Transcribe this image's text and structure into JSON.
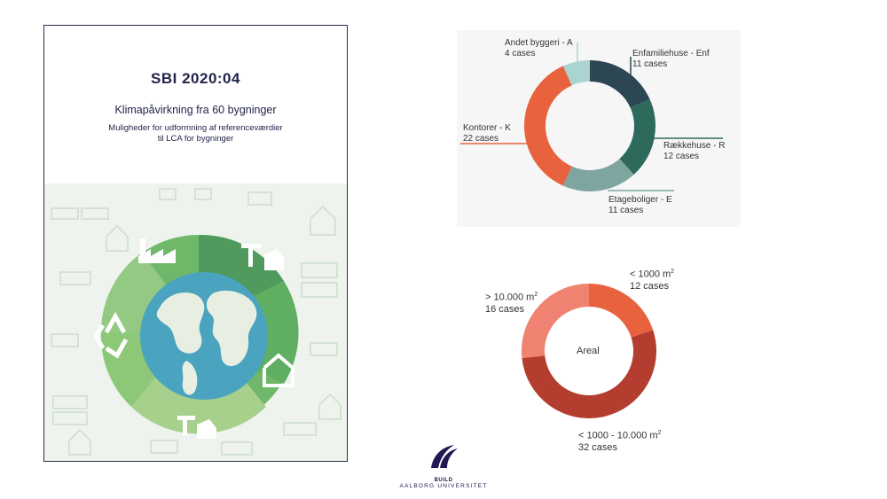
{
  "cover": {
    "title": "SBI 2020:04",
    "subtitle": "Klimapåvirkning fra 60 bygninger",
    "subtitle2_line1": "Muligheder for udformning af referenceværdier",
    "subtitle2_line2": "til LCA for bygninger"
  },
  "chart_data": [
    {
      "type": "pie",
      "title": "",
      "categories": [
        "Enfamiliehuse - Enf",
        "Rækkehuse - R",
        "Etageboliger - E",
        "Kontorer - K",
        "Andet byggeri - A"
      ],
      "values": [
        11,
        12,
        11,
        22,
        4
      ],
      "value_labels": [
        "11 cases",
        "12 cases",
        "11 cases",
        "22 cases",
        "4 cases"
      ],
      "colors": [
        "#2c4654",
        "#2d6a5c",
        "#7fa5a1",
        "#e8623e",
        "#a9d4d0"
      ],
      "donut": true
    },
    {
      "type": "pie",
      "title": "Areal",
      "categories": [
        "< 1000 m²",
        "< 1000 - 10.000 m²",
        "> 10.000 m²"
      ],
      "values": [
        12,
        32,
        16
      ],
      "value_labels": [
        "12 cases",
        "32 cases",
        "16 cases"
      ],
      "colors": [
        "#e8623e",
        "#b33d2e",
        "#ef8270"
      ],
      "donut": true
    }
  ],
  "labels1": {
    "enf_name": "Enfamiliehuse - Enf",
    "enf_count": "11 cases",
    "r_name": "Rækkehuse - R",
    "r_count": "12 cases",
    "e_name": "Etageboliger - E",
    "e_count": "11 cases",
    "k_name": "Kontorer - K",
    "k_count": "22 cases",
    "a_name": "Andet byggeri - A",
    "a_count": "4 cases"
  },
  "labels2": {
    "small_name": "< 1000 m",
    "small_sup": "2",
    "small_count": "12 cases",
    "mid_name": "< 1000 - 10.000 m",
    "mid_sup": "2",
    "mid_count": "32 cases",
    "large_name": "> 10.000 m",
    "large_sup": "2",
    "large_count": "16 cases",
    "center": "Areal"
  },
  "logo": {
    "line1": "BUILD",
    "line2": "AALBORG UNIVERSITET"
  }
}
